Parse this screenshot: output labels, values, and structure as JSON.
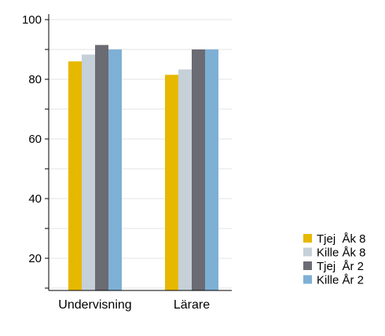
{
  "chart_data": {
    "type": "bar",
    "categories": [
      "Undervisning",
      "Lärare"
    ],
    "series": [
      {
        "name": "Tjej  Åk 8",
        "color": "#e6b800",
        "values": [
          86,
          81.5
        ]
      },
      {
        "name": "Kille Åk 8",
        "color": "#c5d0d8",
        "values": [
          88.3,
          83.3
        ]
      },
      {
        "name": "Tjej  År 2",
        "color": "#6b6b73",
        "values": [
          91.5,
          90
        ]
      },
      {
        "name": "Kille År 2",
        "color": "#7eb0d5",
        "values": [
          90,
          90
        ]
      }
    ],
    "ylim": [
      0,
      100
    ],
    "yticks": [
      20,
      40,
      60,
      80,
      100
    ],
    "yticks_minor": [
      10,
      30,
      50,
      70,
      90
    ],
    "grid": true,
    "legend_position": "right",
    "title": "",
    "xlabel": "",
    "ylabel": ""
  }
}
